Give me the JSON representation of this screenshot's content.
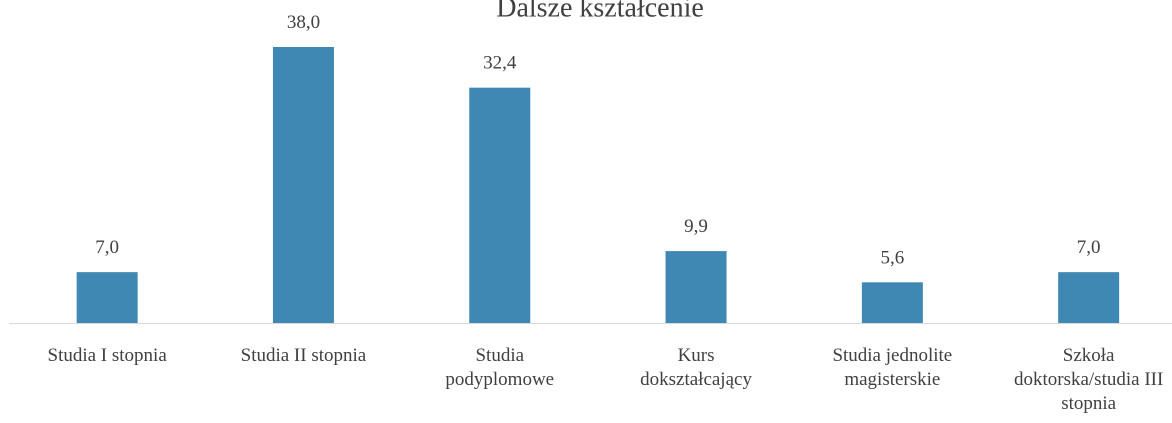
{
  "chart_data": {
    "type": "bar",
    "title": "Dalsze kształcenie",
    "categories": [
      "Studia I stopnia",
      "Studia II stopnia",
      "Studia podyplomowe",
      "Kurs dokształcający",
      "Studia jednolite magisterskie",
      "Szkoła doktorska/studia III stopnia"
    ],
    "values": [
      7.0,
      38.0,
      32.4,
      9.9,
      5.6,
      7.0
    ],
    "value_labels": [
      "7,0",
      "38,0",
      "32,4",
      "9,9",
      "5,6",
      "7,0"
    ],
    "color": "#3f88b4"
  }
}
